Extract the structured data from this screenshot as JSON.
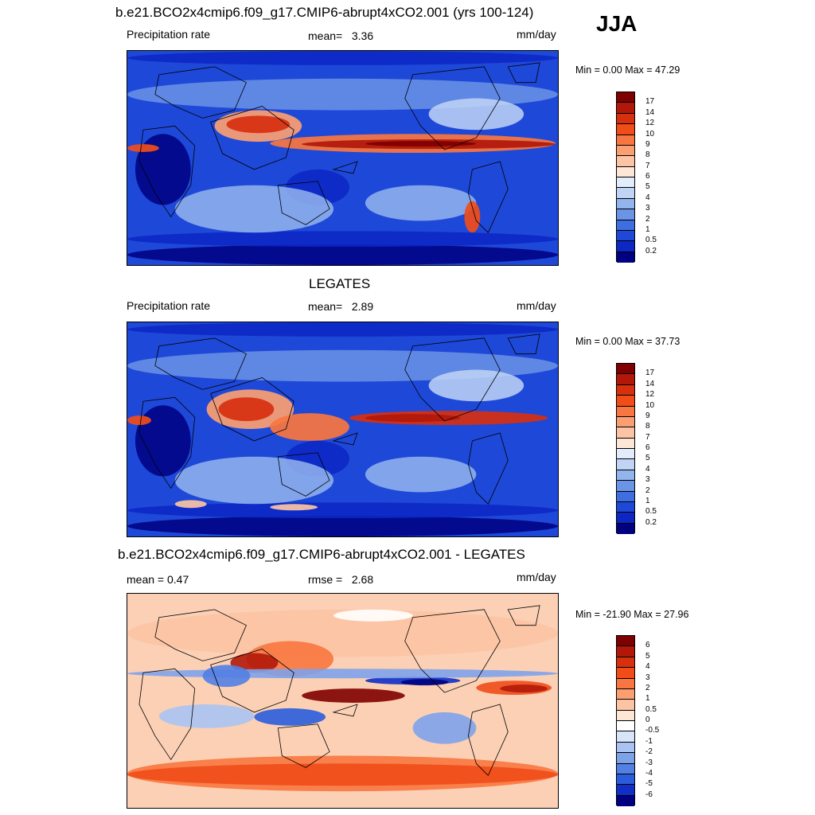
{
  "season": "JJA",
  "panels": [
    {
      "title": "b.e21.BCO2x4cmip6.f09_g17.CMIP6-abrupt4xCO2.001 (yrs 100-124)",
      "left_text": "Precipitation rate",
      "center_label": "mean=",
      "center_value": "3.36",
      "units": "mm/day",
      "minmax": "Min =   0.00 Max =  47.29",
      "colorbar": {
        "labels": [
          "17",
          "14",
          "12",
          "10",
          "9",
          "8",
          "7",
          "6",
          "5",
          "4",
          "3",
          "2",
          "1",
          "0.5",
          "0.2"
        ],
        "colors": [
          "#7f0000",
          "#b2180a",
          "#d7300f",
          "#f04d18",
          "#f8763f",
          "#fb9f72",
          "#fcc4a4",
          "#fde6d6",
          "#e2ecfb",
          "#c0d5f6",
          "#93b5ee",
          "#6b93e6",
          "#3f6ee0",
          "#1e48d8",
          "#0c27c4",
          "#000080"
        ]
      },
      "field": "abrupt4xco2"
    },
    {
      "title": "LEGATES",
      "left_text": "Precipitation rate",
      "center_label": "mean=",
      "center_value": "2.89",
      "units": "mm/day",
      "minmax": "Min =   0.00 Max =  37.73",
      "colorbar": {
        "labels": [
          "17",
          "14",
          "12",
          "10",
          "9",
          "8",
          "7",
          "6",
          "5",
          "4",
          "3",
          "2",
          "1",
          "0.5",
          "0.2"
        ],
        "colors": [
          "#7f0000",
          "#b2180a",
          "#d7300f",
          "#f04d18",
          "#f8763f",
          "#fb9f72",
          "#fcc4a4",
          "#fde6d6",
          "#e2ecfb",
          "#c0d5f6",
          "#93b5ee",
          "#6b93e6",
          "#3f6ee0",
          "#1e48d8",
          "#0c27c4",
          "#000080"
        ]
      },
      "field": "legates"
    },
    {
      "title": "b.e21.BCO2x4cmip6.f09_g17.CMIP6-abrupt4xCO2.001 - LEGATES",
      "left_text": "mean =   0.47",
      "center_label": "rmse =",
      "center_value": "2.68",
      "units": "mm/day",
      "minmax": "Min = -21.90 Max =  27.96",
      "colorbar": {
        "labels": [
          "6",
          "5",
          "4",
          "3",
          "2",
          "1",
          "0.5",
          "0",
          "-0.5",
          "-1",
          "-2",
          "-3",
          "-4",
          "-5",
          "-6"
        ],
        "colors": [
          "#7f0000",
          "#b2180a",
          "#d7300f",
          "#f04d18",
          "#f8763f",
          "#fb9f72",
          "#fcc4a4",
          "#fde6d6",
          "#ffffff",
          "#d8e4f8",
          "#aac3f2",
          "#7ea2ea",
          "#5280e3",
          "#2a5cdc",
          "#0f2fc8",
          "#000080"
        ]
      },
      "field": "difference"
    }
  ]
}
